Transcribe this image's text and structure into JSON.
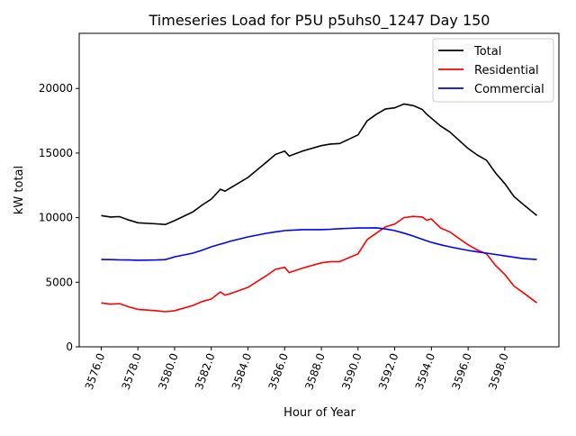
{
  "chart_data": {
    "type": "line",
    "title": "Timeseries Load for P5U p5uhs0_1247  Day 150",
    "xlabel": "Hour of Year",
    "ylabel": "kW total",
    "xlim": [
      3574.8,
      3600.95
    ],
    "ylim": [
      0,
      24270
    ],
    "xticks": [
      3576,
      3578,
      3580,
      3582,
      3584,
      3586,
      3588,
      3590,
      3592,
      3594,
      3596,
      3598
    ],
    "xtick_labels": [
      "3576.0",
      "3578.0",
      "3580.0",
      "3582.0",
      "3584.0",
      "3586.0",
      "3588.0",
      "3590.0",
      "3592.0",
      "3594.0",
      "3596.0",
      "3598.0"
    ],
    "yticks": [
      0,
      5000,
      10000,
      15000,
      20000
    ],
    "ytick_labels": [
      "0",
      "5000",
      "10000",
      "15000",
      "20000"
    ],
    "grid": false,
    "legend_position": "top-right",
    "x": [
      3576,
      3576.5,
      3577,
      3577.5,
      3578,
      3579,
      3579.5,
      3580,
      3581,
      3581.5,
      3582,
      3582.5,
      3582.75,
      3583,
      3584,
      3585,
      3585.5,
      3586,
      3586.25,
      3587,
      3588,
      3588.5,
      3589,
      3590,
      3590.5,
      3591,
      3591.5,
      3592,
      3592.5,
      3593,
      3593.5,
      3593.75,
      3594,
      3594.5,
      3595,
      3595.5,
      3596,
      3596.5,
      3597,
      3597.5,
      3598,
      3598.5,
      3599,
      3599.75
    ],
    "series": [
      {
        "name": "Total",
        "color": "#000000",
        "values": [
          10160,
          10050,
          10080,
          9820,
          9600,
          9520,
          9470,
          9770,
          10450,
          10980,
          11440,
          12200,
          12050,
          12260,
          13110,
          14290,
          14900,
          15150,
          14770,
          15170,
          15570,
          15700,
          15740,
          16400,
          17500,
          18010,
          18420,
          18500,
          18800,
          18680,
          18380,
          18000,
          17700,
          17100,
          16640,
          16000,
          15360,
          14850,
          14450,
          13450,
          12640,
          11630,
          11030,
          10160
        ]
      },
      {
        "name": "Residential",
        "color": "#ff0000",
        "values": [
          3400,
          3300,
          3350,
          3100,
          2900,
          2800,
          2720,
          2800,
          3200,
          3500,
          3700,
          4250,
          4000,
          4100,
          4600,
          5500,
          6000,
          6150,
          5750,
          6100,
          6500,
          6600,
          6600,
          7200,
          8300,
          8800,
          9300,
          9500,
          10000,
          10100,
          10050,
          9800,
          9900,
          9200,
          8900,
          8400,
          7900,
          7500,
          7200,
          6300,
          5600,
          4700,
          4200,
          3400
        ]
      },
      {
        "name": "Commercial",
        "color": "#0000ff",
        "values": [
          6760,
          6750,
          6730,
          6720,
          6700,
          6720,
          6750,
          6970,
          7250,
          7480,
          7740,
          7950,
          8050,
          8160,
          8510,
          8790,
          8900,
          9000,
          9020,
          9070,
          9070,
          9100,
          9140,
          9200,
          9200,
          9210,
          9120,
          9000,
          8800,
          8580,
          8330,
          8200,
          8090,
          7900,
          7740,
          7600,
          7460,
          7350,
          7250,
          7150,
          7040,
          6930,
          6830,
          6760
        ]
      }
    ]
  }
}
